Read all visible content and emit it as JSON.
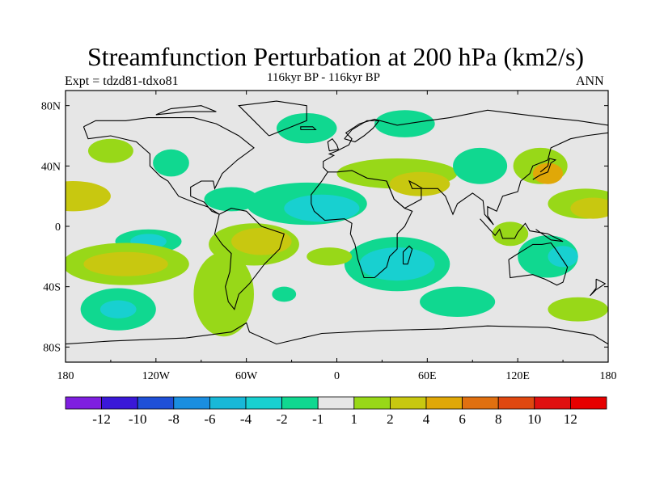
{
  "title": "Streamfunction Perturbation at 200 hPa (km2/s)",
  "subtitle": "116kyr BP - 116kyr BP",
  "left_label": "Expt = tdzd81-tdxo81",
  "right_label": "ANN",
  "colors": {
    "ocean_bg": "#e6e6e6",
    "level_colors": [
      "#7f1fe0",
      "#3a18d8",
      "#1f50d8",
      "#1a8ee0",
      "#18b8d8",
      "#18d0d0",
      "#10d890",
      "#e6e6e6",
      "#98d818",
      "#c8c810",
      "#e0a808",
      "#e07010",
      "#e04810",
      "#e01010",
      "#e60000"
    ]
  },
  "chart_data": {
    "type": "filled-contour-map",
    "variable": "Streamfunction Perturbation at 200 hPa",
    "units": "km2/s",
    "x_ticks": [
      "180",
      "120W",
      "60W",
      "0",
      "60E",
      "120E",
      "180"
    ],
    "y_ticks": [
      "80N",
      "40N",
      "0",
      "40S",
      "80S"
    ],
    "colorbar_labels": [
      "-12",
      "-10",
      "-8",
      "-6",
      "-4",
      "-2",
      "-1",
      "1",
      "2",
      "4",
      "6",
      "8",
      "10",
      "12"
    ],
    "anomalies": [
      {
        "lon": -175,
        "lat": 20,
        "rx": 25,
        "ry": 10,
        "level": 9
      },
      {
        "lon": -150,
        "lat": 50,
        "rx": 15,
        "ry": 8,
        "level": 8
      },
      {
        "lon": -110,
        "lat": 42,
        "rx": 12,
        "ry": 9,
        "level": 6
      },
      {
        "lon": -70,
        "lat": 18,
        "rx": 18,
        "ry": 8,
        "level": 6
      },
      {
        "lon": -20,
        "lat": 15,
        "rx": 40,
        "ry": 14,
        "level": 6
      },
      {
        "lon": -10,
        "lat": 12,
        "rx": 25,
        "ry": 9,
        "level": 5
      },
      {
        "lon": -20,
        "lat": 65,
        "rx": 20,
        "ry": 10,
        "level": 6
      },
      {
        "lon": 45,
        "lat": 68,
        "rx": 20,
        "ry": 9,
        "level": 6
      },
      {
        "lon": 40,
        "lat": 35,
        "rx": 40,
        "ry": 10,
        "level": 8
      },
      {
        "lon": 55,
        "lat": 28,
        "rx": 20,
        "ry": 8,
        "level": 9
      },
      {
        "lon": 95,
        "lat": 40,
        "rx": 18,
        "ry": 12,
        "level": 6
      },
      {
        "lon": 135,
        "lat": 40,
        "rx": 18,
        "ry": 12,
        "level": 8
      },
      {
        "lon": 140,
        "lat": 35,
        "rx": 10,
        "ry": 7,
        "level": 10
      },
      {
        "lon": 165,
        "lat": 15,
        "rx": 25,
        "ry": 10,
        "level": 8
      },
      {
        "lon": 170,
        "lat": 12,
        "rx": 15,
        "ry": 7,
        "level": 9
      },
      {
        "lon": 115,
        "lat": -5,
        "rx": 12,
        "ry": 8,
        "level": 8
      },
      {
        "lon": -125,
        "lat": -10,
        "rx": 22,
        "ry": 8,
        "level": 6
      },
      {
        "lon": -125,
        "lat": -10,
        "rx": 12,
        "ry": 5,
        "level": 5
      },
      {
        "lon": -55,
        "lat": -12,
        "rx": 30,
        "ry": 14,
        "level": 8
      },
      {
        "lon": -50,
        "lat": -10,
        "rx": 20,
        "ry": 9,
        "level": 9
      },
      {
        "lon": -140,
        "lat": -25,
        "rx": 42,
        "ry": 14,
        "level": 8
      },
      {
        "lon": -140,
        "lat": -25,
        "rx": 28,
        "ry": 8,
        "level": 9
      },
      {
        "lon": -75,
        "lat": -45,
        "rx": 20,
        "ry": 28,
        "level": 8
      },
      {
        "lon": -35,
        "lat": -45,
        "rx": 8,
        "ry": 5,
        "level": 6
      },
      {
        "lon": 40,
        "lat": -25,
        "rx": 35,
        "ry": 18,
        "level": 6
      },
      {
        "lon": 40,
        "lat": -25,
        "rx": 25,
        "ry": 11,
        "level": 5
      },
      {
        "lon": 80,
        "lat": -50,
        "rx": 25,
        "ry": 10,
        "level": 6
      },
      {
        "lon": 140,
        "lat": -20,
        "rx": 20,
        "ry": 14,
        "level": 6
      },
      {
        "lon": 150,
        "lat": -20,
        "rx": 10,
        "ry": 7,
        "level": 5
      },
      {
        "lon": 160,
        "lat": -55,
        "rx": 20,
        "ry": 8,
        "level": 8
      },
      {
        "lon": -145,
        "lat": -55,
        "rx": 25,
        "ry": 14,
        "level": 6
      },
      {
        "lon": -145,
        "lat": -55,
        "rx": 12,
        "ry": 6,
        "level": 5
      },
      {
        "lon": -5,
        "lat": -20,
        "rx": 15,
        "ry": 6,
        "level": 8
      }
    ]
  }
}
